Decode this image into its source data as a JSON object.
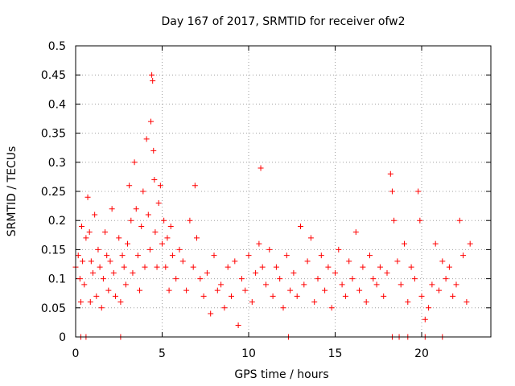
{
  "chart_data": {
    "type": "scatter",
    "title": "Day 167 of 2017, SRMTID for receiver ofw2",
    "xlabel": "GPS time / hours",
    "ylabel": "SRMTID / TECUs",
    "xlim": [
      0,
      24
    ],
    "ylim": [
      0,
      0.5
    ],
    "grid": true,
    "marker": "+",
    "color": "#ff0000",
    "x_ticks": [
      0,
      5,
      10,
      15,
      20
    ],
    "x_tick_labels": [
      "0",
      "5",
      "10",
      "15",
      "20"
    ],
    "y_ticks": [
      0,
      0.05,
      0.1,
      0.15,
      0.2,
      0.25,
      0.3,
      0.35,
      0.4,
      0.45,
      0.5
    ],
    "y_tick_labels": [
      "0",
      "0.05",
      "0.1",
      "0.15",
      "0.2",
      "0.25",
      "0.3",
      "0.35",
      "0.4",
      "0.45",
      "0.5"
    ],
    "series": [
      {
        "name": "SRMTID",
        "x": [
          0.0,
          0.15,
          0.25,
          0.3,
          0.35,
          0.4,
          0.5,
          0.6,
          0.7,
          0.8,
          0.85,
          0.9,
          1.0,
          1.1,
          1.2,
          1.3,
          1.4,
          1.5,
          1.6,
          1.7,
          1.8,
          1.9,
          2.0,
          2.1,
          2.2,
          2.3,
          2.5,
          2.6,
          2.7,
          2.8,
          2.9,
          3.0,
          3.1,
          3.2,
          3.3,
          3.4,
          3.5,
          3.6,
          3.7,
          3.8,
          3.9,
          4.0,
          4.1,
          4.2,
          4.3,
          4.35,
          4.4,
          4.45,
          4.5,
          4.55,
          4.6,
          4.7,
          4.8,
          4.9,
          5.0,
          5.1,
          5.2,
          5.3,
          5.4,
          5.5,
          5.6,
          5.8,
          6.0,
          6.2,
          6.4,
          6.6,
          6.8,
          6.9,
          7.0,
          7.2,
          7.4,
          7.6,
          7.8,
          8.0,
          8.2,
          8.4,
          8.6,
          8.8,
          9.0,
          9.2,
          9.4,
          9.6,
          9.8,
          10.0,
          10.2,
          10.4,
          10.6,
          10.7,
          10.8,
          11.0,
          11.2,
          11.4,
          11.6,
          11.8,
          12.0,
          12.2,
          12.4,
          12.6,
          12.8,
          13.0,
          13.2,
          13.4,
          13.6,
          13.8,
          14.0,
          14.2,
          14.4,
          14.6,
          14.8,
          15.0,
          15.2,
          15.4,
          15.6,
          15.8,
          16.0,
          16.2,
          16.4,
          16.6,
          16.8,
          17.0,
          17.2,
          17.4,
          17.6,
          17.8,
          18.0,
          18.2,
          18.3,
          18.4,
          18.6,
          18.8,
          19.0,
          19.2,
          19.4,
          19.6,
          19.8,
          19.9,
          20.0,
          20.2,
          20.4,
          20.6,
          20.8,
          21.0,
          21.2,
          21.4,
          21.6,
          21.8,
          22.0,
          22.2,
          22.4,
          22.6,
          22.8,
          0.3,
          0.6,
          2.6,
          12.3,
          18.3,
          18.7,
          19.2,
          20.2,
          21.2
        ],
        "y": [
          0.12,
          0.14,
          0.1,
          0.06,
          0.19,
          0.13,
          0.09,
          0.17,
          0.24,
          0.18,
          0.06,
          0.13,
          0.11,
          0.21,
          0.07,
          0.15,
          0.12,
          0.05,
          0.1,
          0.18,
          0.14,
          0.08,
          0.13,
          0.22,
          0.11,
          0.07,
          0.17,
          0.06,
          0.14,
          0.12,
          0.09,
          0.16,
          0.26,
          0.2,
          0.11,
          0.3,
          0.22,
          0.14,
          0.08,
          0.19,
          0.25,
          0.12,
          0.34,
          0.21,
          0.15,
          0.37,
          0.45,
          0.44,
          0.32,
          0.27,
          0.18,
          0.12,
          0.23,
          0.26,
          0.16,
          0.2,
          0.12,
          0.17,
          0.08,
          0.19,
          0.14,
          0.1,
          0.15,
          0.13,
          0.08,
          0.2,
          0.12,
          0.26,
          0.17,
          0.1,
          0.07,
          0.11,
          0.04,
          0.14,
          0.08,
          0.09,
          0.05,
          0.12,
          0.07,
          0.13,
          0.02,
          0.1,
          0.08,
          0.14,
          0.06,
          0.11,
          0.16,
          0.29,
          0.12,
          0.09,
          0.15,
          0.07,
          0.12,
          0.1,
          0.05,
          0.14,
          0.08,
          0.11,
          0.07,
          0.19,
          0.09,
          0.13,
          0.17,
          0.06,
          0.1,
          0.14,
          0.08,
          0.12,
          0.05,
          0.11,
          0.15,
          0.09,
          0.07,
          0.13,
          0.1,
          0.18,
          0.08,
          0.12,
          0.06,
          0.14,
          0.1,
          0.09,
          0.12,
          0.07,
          0.11,
          0.28,
          0.25,
          0.2,
          0.13,
          0.09,
          0.16,
          0.06,
          0.12,
          0.1,
          0.25,
          0.2,
          0.07,
          0.03,
          0.05,
          0.09,
          0.16,
          0.08,
          0.13,
          0.1,
          0.12,
          0.07,
          0.09,
          0.2,
          0.14,
          0.06,
          0.16,
          0.0,
          0.0,
          0.0,
          0.0,
          0.0,
          0.0,
          0.0,
          0.0,
          0.0
        ]
      }
    ]
  }
}
